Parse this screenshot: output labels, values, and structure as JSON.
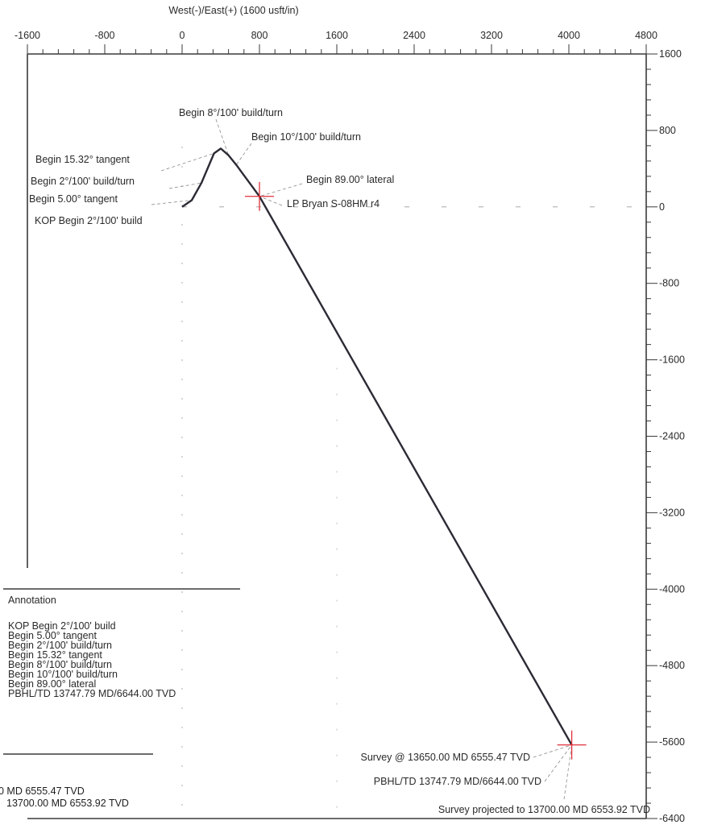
{
  "chart_data": {
    "type": "line",
    "title": "West(-)/East(+) (1600 usft/in)",
    "x_ticks": [
      "-1600",
      "-800",
      "0",
      "800",
      "1600",
      "2400",
      "3200",
      "4000",
      "4800"
    ],
    "x_tick_values": [
      -1600,
      -800,
      0,
      800,
      1600,
      2400,
      3200,
      4000,
      4800
    ],
    "y_ticks": [
      "1600",
      "800",
      "0",
      "-800",
      "-1600",
      "-2400",
      "-3200",
      "-4000",
      "-4800",
      "-5600",
      "-6400"
    ],
    "y_tick_values": [
      1600,
      800,
      0,
      -800,
      -1600,
      -2400,
      -3200,
      -4000,
      -4800,
      -5600,
      -6400
    ],
    "xlim": [
      -1600,
      4800
    ],
    "ylim": [
      -6400,
      1600
    ],
    "series": [
      {
        "name": "LP Bryan S-08HM r4",
        "x": [
          0,
          100,
          200,
          330,
          400,
          480,
          560,
          640,
          720,
          800,
          4030
        ],
        "y": [
          0,
          70,
          250,
          560,
          610,
          540,
          440,
          330,
          220,
          110,
          -5630
        ]
      }
    ],
    "annotations_plot": [
      {
        "text": "Begin 8°/100' build/turn",
        "x": 480,
        "y": 540
      },
      {
        "text": "Begin 10°/100' build/turn",
        "x": 560,
        "y": 440
      },
      {
        "text": "Begin 15.32° tangent",
        "x": 330,
        "y": 560
      },
      {
        "text": "Begin 2°/100' build/turn",
        "x": 200,
        "y": 250
      },
      {
        "text": "Begin 5.00° tangent",
        "x": 100,
        "y": 70
      },
      {
        "text": "KOP Begin 2°/100' build",
        "x": 0,
        "y": 0
      },
      {
        "text": "Begin 89.00° lateral",
        "x": 800,
        "y": 110
      },
      {
        "text": "LP Bryan S-08HM r4",
        "x": 800,
        "y": 110
      },
      {
        "text": "Survey @ 13650.00 MD 6555.47 TVD",
        "x": 4030,
        "y": -5630
      },
      {
        "text": "PBHL/TD 13747.79 MD/6644.00 TVD",
        "x": 4030,
        "y": -5630
      },
      {
        "text": "Survey projected to 13700.00 MD 6553.92 TVD",
        "x": 4030,
        "y": -5630
      }
    ],
    "targets": [
      {
        "x": 800,
        "y": 110
      },
      {
        "x": 4030,
        "y": -5630
      }
    ],
    "grid": false
  },
  "annotation_box": {
    "title": "Annotation",
    "items": [
      "KOP Begin 2°/100' build",
      "Begin 5.00° tangent",
      "Begin 2°/100' build/turn",
      "Begin 15.32° tangent",
      "Begin 8°/100' build/turn",
      "Begin 10°/100' build/turn",
      "Begin 89.00° lateral",
      "PBHL/TD 13747.79 MD/6644.00 TVD"
    ]
  },
  "cut_off_text": {
    "line1": "0 MD 6555.47 TVD",
    "line2": "13700.00 MD 6553.92 TVD"
  },
  "colors": {
    "trajectory": "#2b2b36",
    "target": "#e0303a",
    "axis": "#3a3a3a",
    "leader": "#8a8a8a"
  }
}
